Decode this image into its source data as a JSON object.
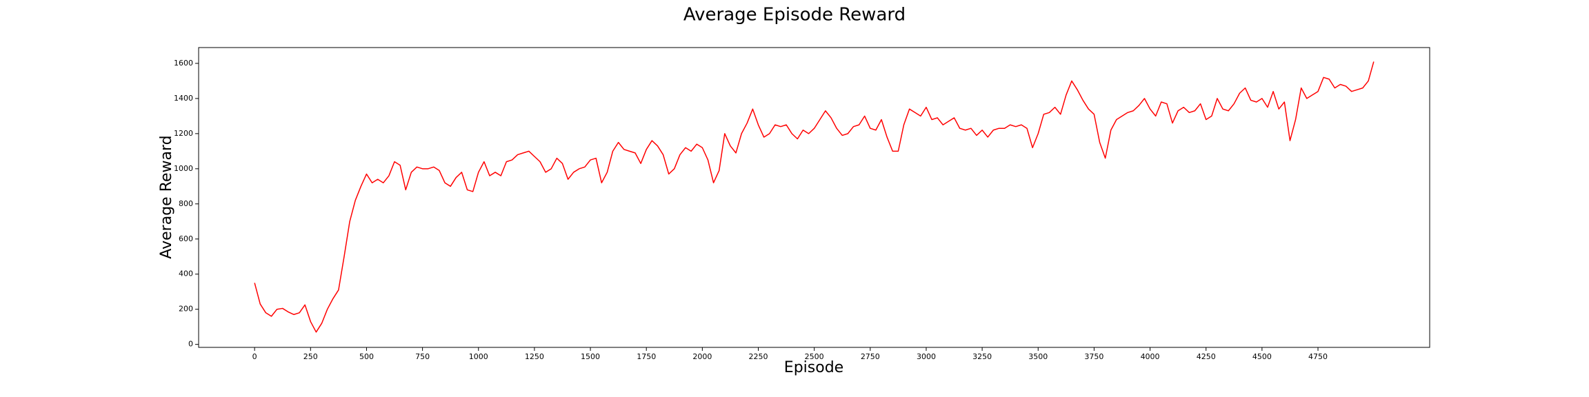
{
  "chart_data": {
    "type": "line",
    "title": "Average Episode Reward",
    "x_label": "Episode",
    "y_label": "Average Reward",
    "x": [
      0,
      25,
      50,
      75,
      100,
      125,
      150,
      175,
      200,
      225,
      250,
      275,
      300,
      325,
      350,
      375,
      400,
      425,
      450,
      475,
      500,
      525,
      550,
      575,
      600,
      625,
      650,
      675,
      700,
      725,
      750,
      775,
      800,
      825,
      850,
      875,
      900,
      925,
      950,
      975,
      1000,
      1025,
      1050,
      1075,
      1100,
      1125,
      1150,
      1175,
      1200,
      1225,
      1250,
      1275,
      1300,
      1325,
      1350,
      1375,
      1400,
      1425,
      1450,
      1475,
      1500,
      1525,
      1550,
      1575,
      1600,
      1625,
      1650,
      1675,
      1700,
      1725,
      1750,
      1775,
      1800,
      1825,
      1850,
      1875,
      1900,
      1925,
      1950,
      1975,
      2000,
      2025,
      2050,
      2075,
      2100,
      2125,
      2150,
      2175,
      2200,
      2225,
      2250,
      2275,
      2300,
      2325,
      2350,
      2375,
      2400,
      2425,
      2450,
      2475,
      2500,
      2525,
      2550,
      2575,
      2600,
      2625,
      2650,
      2675,
      2700,
      2725,
      2750,
      2775,
      2800,
      2825,
      2850,
      2875,
      2900,
      2925,
      2950,
      2975,
      3000,
      3025,
      3050,
      3075,
      3100,
      3125,
      3150,
      3175,
      3200,
      3225,
      3250,
      3275,
      3300,
      3325,
      3350,
      3375,
      3400,
      3425,
      3450,
      3475,
      3500,
      3525,
      3550,
      3575,
      3600,
      3625,
      3650,
      3675,
      3700,
      3725,
      3750,
      3775,
      3800,
      3825,
      3850,
      3875,
      3900,
      3925,
      3950,
      3975,
      4000,
      4025,
      4050,
      4075,
      4100,
      4125,
      4150,
      4175,
      4200,
      4225,
      4250,
      4275,
      4300,
      4325,
      4350,
      4375,
      4400,
      4425,
      4450,
      4475,
      4500,
      4525,
      4550,
      4575,
      4600,
      4625,
      4650,
      4675,
      4700,
      4725,
      4750,
      4775,
      4800,
      4825,
      4850,
      4875,
      4900,
      4925,
      4950,
      4975,
      4999
    ],
    "series": [
      {
        "name": "Average Reward",
        "color": "#ff0000",
        "values": [
          350,
          230,
          180,
          160,
          200,
          205,
          185,
          170,
          180,
          225,
          130,
          70,
          120,
          200,
          260,
          310,
          500,
          700,
          820,
          900,
          970,
          920,
          940,
          920,
          960,
          1040,
          1020,
          880,
          980,
          1010,
          1000,
          1000,
          1010,
          990,
          920,
          900,
          950,
          980,
          880,
          870,
          980,
          1040,
          960,
          980,
          960,
          1040,
          1050,
          1080,
          1090,
          1100,
          1070,
          1040,
          980,
          1000,
          1060,
          1030,
          940,
          980,
          1000,
          1010,
          1050,
          1060,
          920,
          980,
          1100,
          1150,
          1110,
          1100,
          1090,
          1030,
          1110,
          1160,
          1130,
          1080,
          970,
          1000,
          1080,
          1120,
          1100,
          1140,
          1120,
          1050,
          920,
          990,
          1200,
          1130,
          1090,
          1200,
          1260,
          1340,
          1250,
          1180,
          1200,
          1250,
          1240,
          1250,
          1200,
          1170,
          1220,
          1200,
          1230,
          1280,
          1330,
          1290,
          1230,
          1190,
          1200,
          1240,
          1250,
          1300,
          1230,
          1220,
          1280,
          1180,
          1100,
          1100,
          1250,
          1340,
          1320,
          1300,
          1350,
          1280,
          1290,
          1250,
          1270,
          1290,
          1230,
          1220,
          1230,
          1190,
          1220,
          1180,
          1220,
          1230,
          1230,
          1250,
          1240,
          1250,
          1230,
          1120,
          1200,
          1310,
          1320,
          1350,
          1310,
          1420,
          1500,
          1450,
          1390,
          1340,
          1310,
          1150,
          1060,
          1220,
          1280,
          1300,
          1320,
          1330,
          1360,
          1400,
          1340,
          1300,
          1380,
          1370,
          1260,
          1330,
          1350,
          1320,
          1330,
          1370,
          1280,
          1300,
          1400,
          1340,
          1330,
          1370,
          1430,
          1460,
          1390,
          1380,
          1400,
          1350,
          1440,
          1340,
          1380,
          1160,
          1280,
          1460,
          1400,
          1420,
          1440,
          1520,
          1510,
          1460,
          1480,
          1470,
          1440,
          1450,
          1460,
          1500,
          1610
        ]
      }
    ],
    "xlim": [
      -250,
      5249
    ],
    "ylim": [
      -17,
      1690
    ],
    "xticks": [
      0,
      250,
      500,
      750,
      1000,
      1250,
      1500,
      1750,
      2000,
      2250,
      2500,
      2750,
      3000,
      3250,
      3500,
      3750,
      4000,
      4250,
      4500,
      4750
    ],
    "yticks": [
      0,
      200,
      400,
      600,
      800,
      1000,
      1200,
      1400,
      1600
    ],
    "grid": false
  }
}
